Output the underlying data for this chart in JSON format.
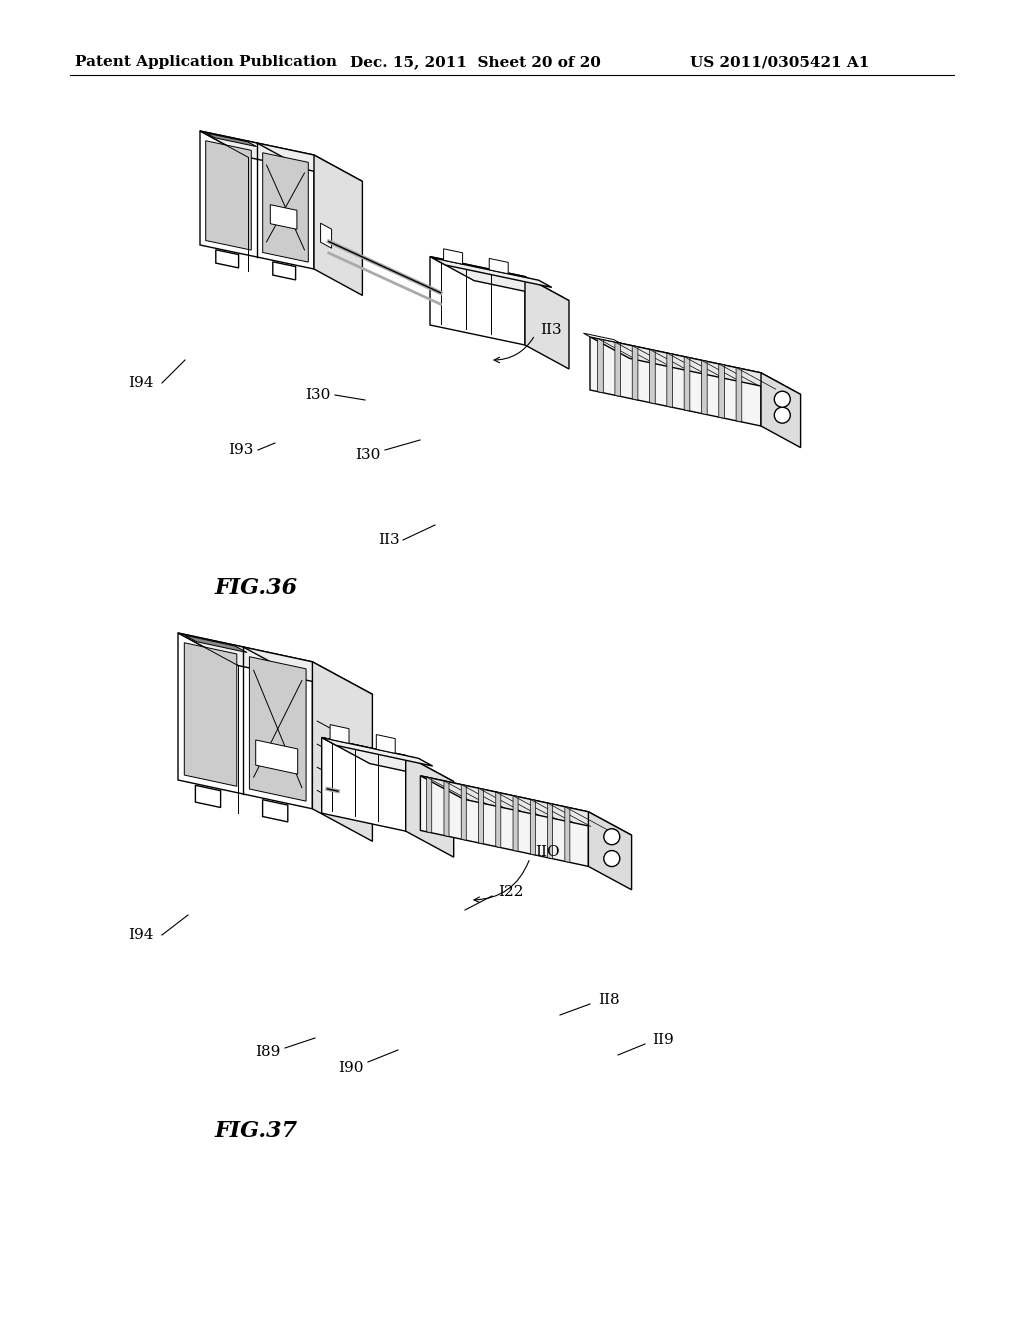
{
  "background_color": "#ffffff",
  "header_left": "Patent Application Publication",
  "header_center": "Dec. 15, 2011  Sheet 20 of 20",
  "header_right": "US 2011/0305421 A1",
  "fig36_label": "FIG.36",
  "fig37_label": "FIG.37",
  "line_color": "#000000",
  "annotation_fontsize": 11,
  "fig_label_fontsize": 16,
  "header_fontsize": 11
}
